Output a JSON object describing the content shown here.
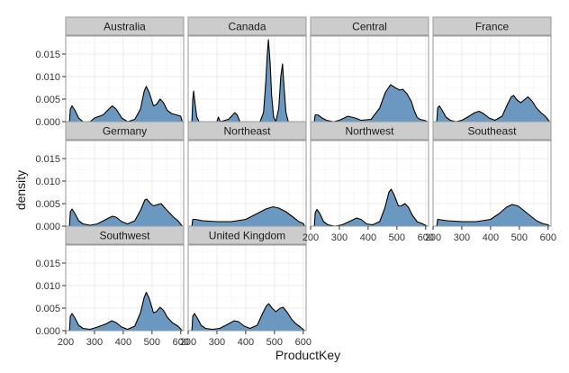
{
  "chart_data": {
    "type": "area",
    "facet_layout": "wrap 4 columns",
    "xlabel": "ProductKey",
    "ylabel": "density",
    "xlim": [
      200,
      610
    ],
    "ylim": [
      0,
      0.019
    ],
    "x_ticks": [
      200,
      300,
      400,
      500,
      600
    ],
    "x_tick_labels": [
      "200",
      "300",
      "400",
      "500",
      "600"
    ],
    "y_ticks": [
      0,
      0.005,
      0.01,
      0.015
    ],
    "y_tick_labels": [
      "0.000",
      "0.005",
      "0.010",
      "0.015"
    ],
    "grid": true,
    "fill_color": "#6b98c1",
    "line_color": "#000000",
    "strip_color": "#cccccc",
    "panel_border_color": "#9a9a9a",
    "grid_color": "#ebebeb",
    "panels": [
      {
        "name": "Australia",
        "points": [
          [
            213,
            0
          ],
          [
            216,
            0.0028
          ],
          [
            222,
            0.0035
          ],
          [
            232,
            0.0025
          ],
          [
            245,
            0.0008
          ],
          [
            260,
            0
          ],
          [
            285,
            0
          ],
          [
            300,
            0.0008
          ],
          [
            330,
            0.0015
          ],
          [
            350,
            0.0028
          ],
          [
            362,
            0.0035
          ],
          [
            375,
            0.0028
          ],
          [
            395,
            0.0008
          ],
          [
            415,
            0
          ],
          [
            440,
            0.0005
          ],
          [
            460,
            0.0028
          ],
          [
            473,
            0.0068
          ],
          [
            480,
            0.0078
          ],
          [
            490,
            0.0065
          ],
          [
            505,
            0.0035
          ],
          [
            515,
            0.0038
          ],
          [
            528,
            0.005
          ],
          [
            540,
            0.0042
          ],
          [
            553,
            0.0025
          ],
          [
            568,
            0.0018
          ],
          [
            585,
            0.0015
          ],
          [
            600,
            0.0012
          ],
          [
            605,
            0
          ]
        ]
      },
      {
        "name": "Canada",
        "points": [
          [
            213,
            0
          ],
          [
            216,
            0.005
          ],
          [
            219,
            0.0068
          ],
          [
            224,
            0.004
          ],
          [
            230,
            0.001
          ],
          [
            238,
            0
          ],
          [
            260,
            0
          ],
          [
            300,
            0
          ],
          [
            305,
            0.001
          ],
          [
            312,
            0
          ],
          [
            340,
            0.0005
          ],
          [
            355,
            0.0015
          ],
          [
            362,
            0.002
          ],
          [
            370,
            0.0015
          ],
          [
            380,
            0
          ],
          [
            400,
            0
          ],
          [
            450,
            0
          ],
          [
            462,
            0.002
          ],
          [
            470,
            0.009
          ],
          [
            475,
            0.015
          ],
          [
            479,
            0.0182
          ],
          [
            485,
            0.013
          ],
          [
            490,
            0.006
          ],
          [
            497,
            0.001
          ],
          [
            505,
            0
          ],
          [
            515,
            0.003
          ],
          [
            522,
            0.01
          ],
          [
            528,
            0.0128
          ],
          [
            533,
            0.008
          ],
          [
            540,
            0.002
          ],
          [
            548,
            0
          ],
          [
            560,
            0
          ],
          [
            580,
            0
          ],
          [
            600,
            0
          ],
          [
            605,
            0
          ]
        ]
      },
      {
        "name": "Central",
        "points": [
          [
            213,
            0
          ],
          [
            216,
            0.0015
          ],
          [
            225,
            0.0015
          ],
          [
            240,
            0.0008
          ],
          [
            255,
            0.0003
          ],
          [
            280,
            0
          ],
          [
            300,
            0.0003
          ],
          [
            330,
            0.0012
          ],
          [
            355,
            0.0008
          ],
          [
            375,
            0.0003
          ],
          [
            410,
            0.0005
          ],
          [
            440,
            0.003
          ],
          [
            460,
            0.0065
          ],
          [
            478,
            0.0082
          ],
          [
            495,
            0.0075
          ],
          [
            510,
            0.007
          ],
          [
            520,
            0.0072
          ],
          [
            535,
            0.0062
          ],
          [
            550,
            0.0045
          ],
          [
            560,
            0.0025
          ],
          [
            570,
            0.001
          ],
          [
            580,
            0.0005
          ],
          [
            595,
            0.0003
          ],
          [
            605,
            0
          ]
        ]
      },
      {
        "name": "France",
        "points": [
          [
            213,
            0
          ],
          [
            216,
            0.003
          ],
          [
            222,
            0.0035
          ],
          [
            232,
            0.0025
          ],
          [
            245,
            0.001
          ],
          [
            260,
            0.0003
          ],
          [
            280,
            0
          ],
          [
            300,
            0.0003
          ],
          [
            320,
            0.001
          ],
          [
            345,
            0.002
          ],
          [
            360,
            0.0023
          ],
          [
            375,
            0.0018
          ],
          [
            395,
            0.0008
          ],
          [
            415,
            0.0003
          ],
          [
            440,
            0.0012
          ],
          [
            460,
            0.004
          ],
          [
            472,
            0.0055
          ],
          [
            480,
            0.0058
          ],
          [
            492,
            0.0048
          ],
          [
            505,
            0.0042
          ],
          [
            520,
            0.005
          ],
          [
            530,
            0.0055
          ],
          [
            545,
            0.0045
          ],
          [
            560,
            0.003
          ],
          [
            575,
            0.002
          ],
          [
            590,
            0.0012
          ],
          [
            605,
            0
          ]
        ]
      },
      {
        "name": "Germany",
        "points": [
          [
            213,
            0
          ],
          [
            216,
            0.0032
          ],
          [
            222,
            0.0038
          ],
          [
            232,
            0.0028
          ],
          [
            245,
            0.0012
          ],
          [
            260,
            0.0005
          ],
          [
            285,
            0.0002
          ],
          [
            310,
            0.0005
          ],
          [
            340,
            0.0015
          ],
          [
            362,
            0.0022
          ],
          [
            375,
            0.002
          ],
          [
            395,
            0.001
          ],
          [
            415,
            0.0005
          ],
          [
            440,
            0.0012
          ],
          [
            460,
            0.0035
          ],
          [
            475,
            0.0058
          ],
          [
            482,
            0.006
          ],
          [
            495,
            0.005
          ],
          [
            505,
            0.0045
          ],
          [
            520,
            0.0048
          ],
          [
            532,
            0.005
          ],
          [
            545,
            0.004
          ],
          [
            560,
            0.003
          ],
          [
            575,
            0.002
          ],
          [
            590,
            0.0012
          ],
          [
            605,
            0
          ]
        ]
      },
      {
        "name": "Northeast",
        "points": [
          [
            213,
            0
          ],
          [
            216,
            0.0015
          ],
          [
            225,
            0.0015
          ],
          [
            250,
            0.0012
          ],
          [
            300,
            0.001
          ],
          [
            350,
            0.001
          ],
          [
            400,
            0.0015
          ],
          [
            440,
            0.0028
          ],
          [
            470,
            0.0038
          ],
          [
            495,
            0.0043
          ],
          [
            515,
            0.004
          ],
          [
            540,
            0.0032
          ],
          [
            565,
            0.002
          ],
          [
            585,
            0.001
          ],
          [
            600,
            0.0006
          ],
          [
            605,
            0
          ]
        ]
      },
      {
        "name": "Northwest",
        "points": [
          [
            213,
            0
          ],
          [
            216,
            0.003
          ],
          [
            222,
            0.0037
          ],
          [
            232,
            0.0028
          ],
          [
            245,
            0.001
          ],
          [
            260,
            0.0003
          ],
          [
            285,
            0
          ],
          [
            310,
            0.0003
          ],
          [
            340,
            0.0012
          ],
          [
            360,
            0.0018
          ],
          [
            375,
            0.0015
          ],
          [
            395,
            0.0005
          ],
          [
            415,
            0.0003
          ],
          [
            440,
            0.001
          ],
          [
            458,
            0.004
          ],
          [
            472,
            0.0075
          ],
          [
            480,
            0.0082
          ],
          [
            490,
            0.007
          ],
          [
            505,
            0.0045
          ],
          [
            515,
            0.0045
          ],
          [
            528,
            0.005
          ],
          [
            540,
            0.0042
          ],
          [
            553,
            0.0025
          ],
          [
            570,
            0.001
          ],
          [
            590,
            0.0005
          ],
          [
            605,
            0
          ]
        ]
      },
      {
        "name": "Southeast",
        "points": [
          [
            213,
            0
          ],
          [
            216,
            0.0015
          ],
          [
            250,
            0.0012
          ],
          [
            300,
            0.001
          ],
          [
            350,
            0.001
          ],
          [
            400,
            0.0015
          ],
          [
            430,
            0.0028
          ],
          [
            455,
            0.0042
          ],
          [
            475,
            0.0048
          ],
          [
            495,
            0.0045
          ],
          [
            515,
            0.0035
          ],
          [
            540,
            0.0022
          ],
          [
            560,
            0.0012
          ],
          [
            580,
            0.0006
          ],
          [
            600,
            0.0003
          ],
          [
            605,
            0
          ]
        ]
      },
      {
        "name": "Southwest",
        "points": [
          [
            213,
            0
          ],
          [
            216,
            0.0032
          ],
          [
            222,
            0.0038
          ],
          [
            232,
            0.0028
          ],
          [
            245,
            0.0012
          ],
          [
            260,
            0.0005
          ],
          [
            285,
            0.0003
          ],
          [
            310,
            0.0008
          ],
          [
            340,
            0.0015
          ],
          [
            360,
            0.0022
          ],
          [
            375,
            0.0018
          ],
          [
            395,
            0.0008
          ],
          [
            415,
            0.0003
          ],
          [
            440,
            0.001
          ],
          [
            460,
            0.004
          ],
          [
            472,
            0.0072
          ],
          [
            480,
            0.0085
          ],
          [
            490,
            0.0072
          ],
          [
            505,
            0.004
          ],
          [
            515,
            0.0042
          ],
          [
            528,
            0.0052
          ],
          [
            540,
            0.0045
          ],
          [
            553,
            0.003
          ],
          [
            570,
            0.0018
          ],
          [
            590,
            0.001
          ],
          [
            605,
            0
          ]
        ]
      },
      {
        "name": "United Kingdom",
        "points": [
          [
            213,
            0
          ],
          [
            216,
            0.0032
          ],
          [
            222,
            0.0038
          ],
          [
            232,
            0.0028
          ],
          [
            245,
            0.0012
          ],
          [
            260,
            0.0005
          ],
          [
            285,
            0.0003
          ],
          [
            310,
            0.0005
          ],
          [
            340,
            0.0015
          ],
          [
            360,
            0.0022
          ],
          [
            375,
            0.002
          ],
          [
            395,
            0.001
          ],
          [
            415,
            0.0005
          ],
          [
            440,
            0.0012
          ],
          [
            460,
            0.004
          ],
          [
            472,
            0.0055
          ],
          [
            480,
            0.006
          ],
          [
            492,
            0.005
          ],
          [
            505,
            0.0042
          ],
          [
            520,
            0.005
          ],
          [
            530,
            0.0052
          ],
          [
            545,
            0.004
          ],
          [
            560,
            0.0025
          ],
          [
            575,
            0.0015
          ],
          [
            590,
            0.0008
          ],
          [
            605,
            0
          ]
        ]
      }
    ]
  }
}
